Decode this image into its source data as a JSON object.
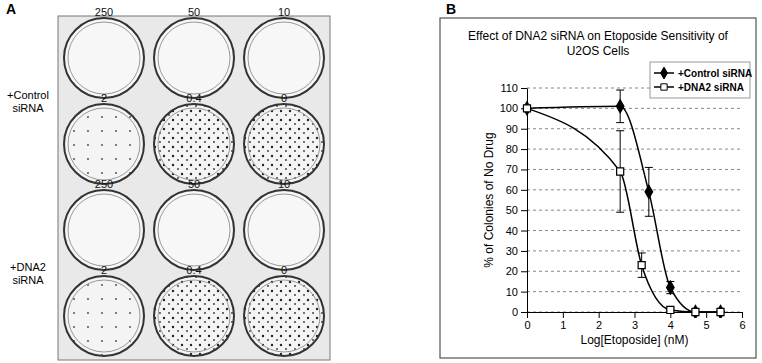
{
  "image_panel": {
    "panel_label": "A",
    "rows": [
      {
        "label": "+Control siRNA",
        "plates": [
          250,
          50,
          10,
          2,
          0.4,
          0
        ]
      },
      {
        "label": "+DNA2 siRNA",
        "plates": [
          250,
          50,
          10,
          2,
          0.4,
          0
        ]
      }
    ]
  },
  "chart_data": {
    "type": "line",
    "panel_label": "B",
    "title": "Effect of DNA2 siRNA on Etoposide Sensitivity of U2OS Cells",
    "x_label": "Log[Etoposide] (nM)",
    "y_label": "% of Colonies of No Drug",
    "series": [
      {
        "name": "+Control siRNA",
        "color": "#000000",
        "marker": "diamond",
        "line_style": "smooth",
        "x": [
          0,
          2.6,
          3.4,
          4,
          4.7,
          5.4
        ],
        "values": [
          100,
          101,
          59,
          12,
          0,
          0
        ],
        "errors": [
          0,
          8,
          12,
          3,
          0,
          0
        ]
      },
      {
        "name": "+DNA2 siRNA",
        "color": "#000000",
        "marker": "open-square",
        "line_style": "smooth",
        "x": [
          0,
          2.6,
          3.2,
          4,
          4.7,
          5.4
        ],
        "values": [
          100,
          69,
          23,
          1,
          0,
          0
        ],
        "errors": [
          0,
          20,
          6,
          1,
          0,
          0
        ]
      }
    ],
    "xlim": [
      0,
      6
    ],
    "xticks": [
      0,
      1,
      2,
      3,
      4,
      5,
      6
    ],
    "ylim": [
      0,
      110
    ],
    "yticks": [
      0,
      10,
      20,
      30,
      40,
      50,
      60,
      70,
      80,
      90,
      100,
      110
    ],
    "grid": true,
    "legend": "top-right"
  }
}
